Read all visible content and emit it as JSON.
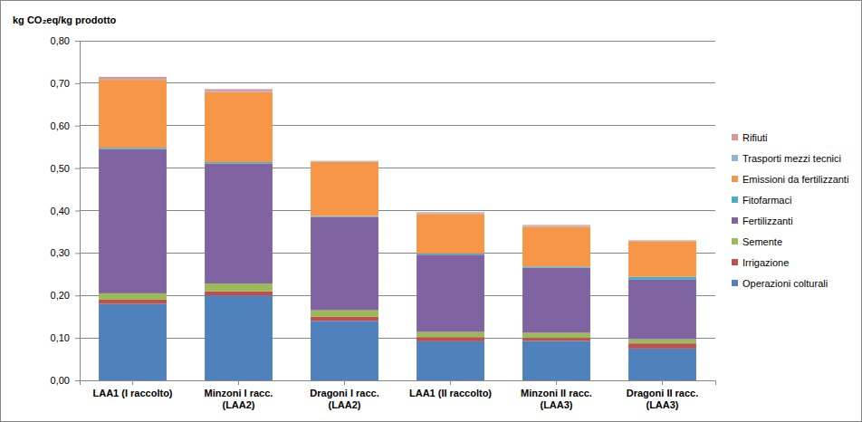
{
  "chart_data": {
    "type": "bar",
    "stacked": true,
    "grid": true,
    "legend": "right",
    "y_label": "kg CO₂eq/kg prodotto",
    "categories": [
      "LAA1 (I raccolto)",
      "Minzoni I racc. (LAA2)",
      "Dragoni I racc. (LAA2)",
      "LAA1 (II raccolto)",
      "Minzoni II racc. (LAA3)",
      "Dragoni II racc. (LAA3)"
    ],
    "ylim": [
      0,
      0.8
    ],
    "yticks": [
      {
        "value": 0,
        "label": "0,00"
      },
      {
        "value": 0.1,
        "label": "0,10"
      },
      {
        "value": 0.2,
        "label": "0,20"
      },
      {
        "value": 0.3,
        "label": "0,30"
      },
      {
        "value": 0.4,
        "label": "0,40"
      },
      {
        "value": 0.5,
        "label": "0,50"
      },
      {
        "value": 0.6,
        "label": "0,60"
      },
      {
        "value": 0.7,
        "label": "0,70"
      },
      {
        "value": 0.8,
        "label": "0,80"
      }
    ],
    "series": [
      {
        "name": "Operazioni colturali",
        "color": "#4f81bd",
        "values": [
          0.18,
          0.2,
          0.14,
          0.092,
          0.093,
          0.075
        ]
      },
      {
        "name": "Irrigazione",
        "color": "#c0504d",
        "values": [
          0.01,
          0.01,
          0.01,
          0.01,
          0.007,
          0.012
        ]
      },
      {
        "name": "Semente",
        "color": "#9bbb59",
        "values": [
          0.015,
          0.018,
          0.015,
          0.012,
          0.012,
          0.01
        ]
      },
      {
        "name": "Fertilizzanti",
        "color": "#8064a2",
        "values": [
          0.34,
          0.283,
          0.22,
          0.182,
          0.153,
          0.14
        ]
      },
      {
        "name": "Fitofarmaci",
        "color": "#4bacc6",
        "values": [
          0.003,
          0.003,
          0.002,
          0.003,
          0.003,
          0.007
        ]
      },
      {
        "name": "Emissioni da fertilizzanti",
        "color": "#f79646",
        "values": [
          0.16,
          0.165,
          0.128,
          0.093,
          0.094,
          0.084
        ]
      },
      {
        "name": "Trasporti mezzi tecnici",
        "color": "#95b3d7",
        "values": [
          0.002,
          0.002,
          0.001,
          0.002,
          0.002,
          0.001
        ]
      },
      {
        "name": "Rifiuti",
        "color": "#d99694",
        "values": [
          0.005,
          0.005,
          0.001,
          0.002,
          0.002,
          0.001
        ]
      }
    ]
  }
}
